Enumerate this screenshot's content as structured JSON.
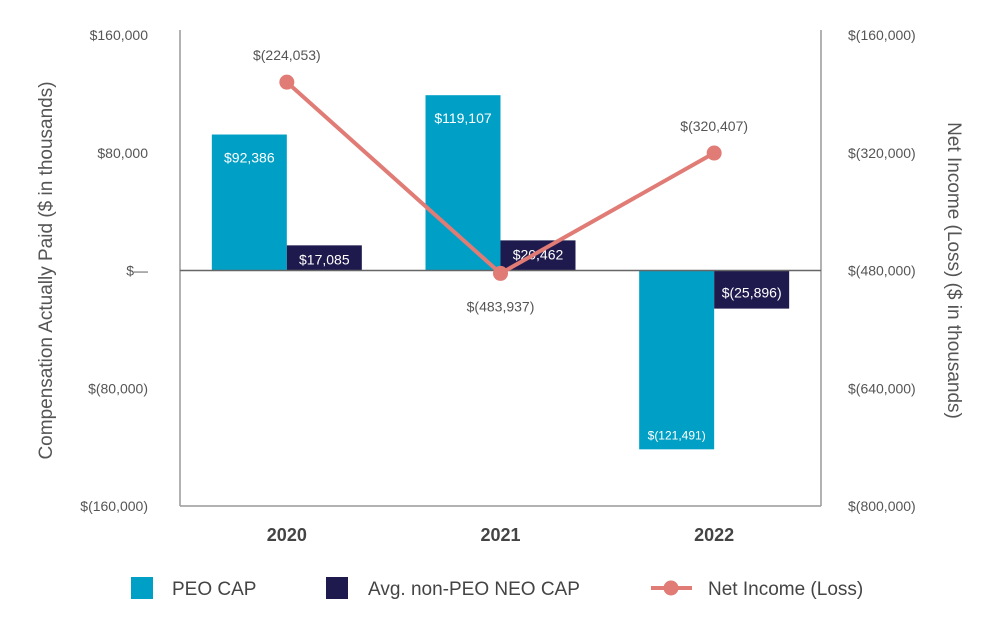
{
  "chart_data": {
    "type": "bar",
    "categories": [
      "2020",
      "2021",
      "2022"
    ],
    "series": [
      {
        "name": "PEO CAP",
        "kind": "bar",
        "axis": "left",
        "color": "#00a0c6",
        "values": [
          92386,
          119107,
          -121491
        ],
        "labels": [
          "$92,386",
          "$119,107",
          "$(121,491)"
        ]
      },
      {
        "name": "Avg. non-PEO NEO CAP",
        "kind": "bar",
        "axis": "left",
        "color": "#1f1a4d",
        "values": [
          17085,
          20462,
          -25896
        ],
        "labels": [
          "$17,085",
          "$20,462",
          "$(25,896)"
        ]
      },
      {
        "name": "Net Income (Loss)",
        "kind": "line",
        "axis": "right",
        "color": "#e07b75",
        "values": [
          -224053,
          -483937,
          -320407
        ],
        "labels": [
          "$(224,053)",
          "$(483,937)",
          "$(320,407)"
        ]
      }
    ],
    "left_axis": {
      "title": "Compensation Actually Paid ($ in thousands)",
      "range": [
        -160000,
        160000
      ],
      "ticks": [
        160000,
        80000,
        0,
        -80000,
        -160000
      ],
      "tick_labels": [
        "$160,000",
        "$80,000",
        "$—",
        "$(80,000)",
        "$(160,000)"
      ]
    },
    "right_axis": {
      "title": "Net Income (Loss) ($ in thousands)",
      "range": [
        -800000,
        -160000
      ],
      "ticks": [
        -160000,
        -320000,
        -480000,
        -640000,
        -800000
      ],
      "tick_labels": [
        "$(160,000)",
        "$(320,000)",
        "$(480,000)",
        "$(640,000)",
        "$(800,000)"
      ]
    },
    "legend": {
      "position": "bottom",
      "entries": [
        "PEO CAP",
        "Avg. non-PEO NEO CAP",
        "Net Income (Loss)"
      ]
    }
  }
}
